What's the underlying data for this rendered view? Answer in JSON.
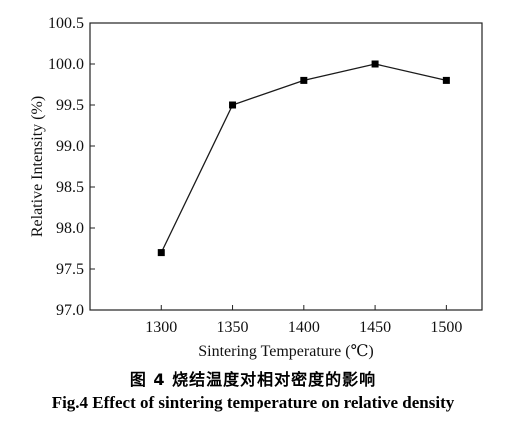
{
  "chart_data": {
    "type": "line",
    "xlabel": "Sintering Temperature (℃)",
    "ylabel": "Relative Intensity (%)",
    "x": [
      1300,
      1350,
      1400,
      1450,
      1500
    ],
    "series": [
      {
        "values": [
          97.7,
          99.5,
          99.8,
          100.0,
          99.8
        ]
      }
    ],
    "x_ticks": [
      "1300",
      "1350",
      "1400",
      "1450",
      "1500"
    ],
    "y_ticks": [
      "97.0",
      "97.5",
      "98.0",
      "98.5",
      "99.0",
      "99.5",
      "100.0",
      "100.5"
    ],
    "xlim": [
      1250,
      1525
    ],
    "ylim": [
      97.0,
      100.5
    ],
    "grid": false,
    "marker": "square",
    "line_color": "#1a1a1a"
  },
  "captions": {
    "cn": "图 4    烧结温度对相对密度的影响",
    "en": "Fig.4 Effect of sintering temperature on relative density"
  }
}
